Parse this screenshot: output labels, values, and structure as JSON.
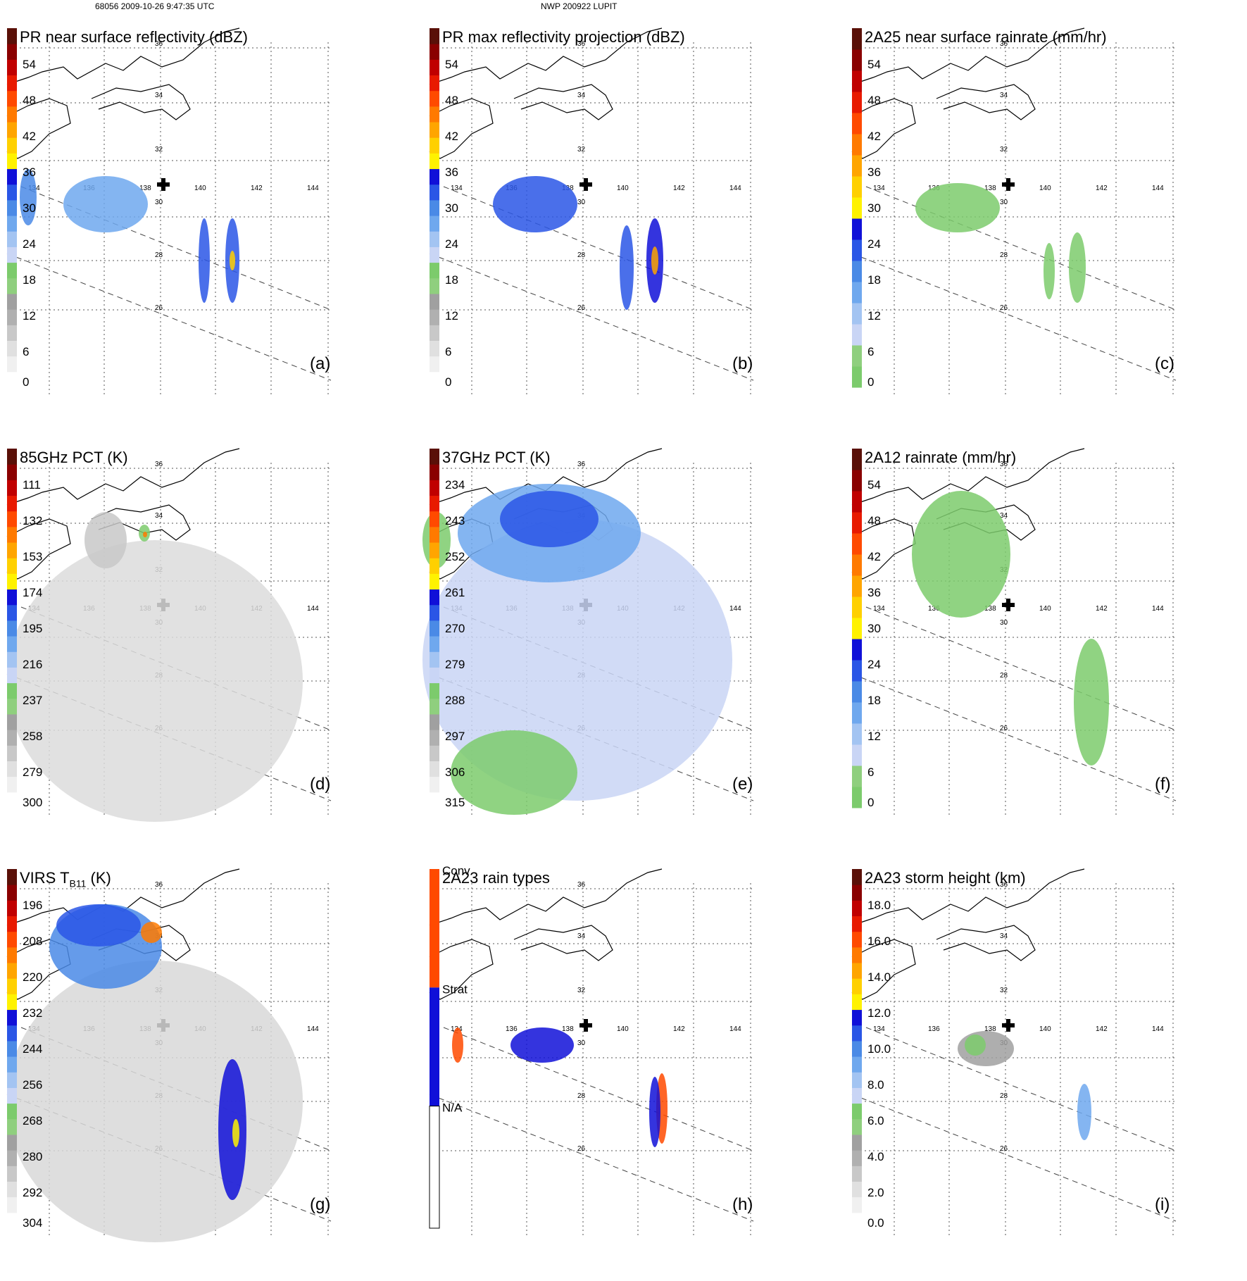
{
  "header": {
    "left": "68056 2009-10-26 9:47:35 UTC",
    "center": "NWP 200922 LUPIT"
  },
  "map": {
    "lon_labels": [
      "134",
      "136",
      "138",
      "140",
      "142",
      "144"
    ],
    "lat_labels": [
      "36",
      "34",
      "32",
      "30",
      "28",
      "26"
    ]
  },
  "chart_data": [
    {
      "id": "a",
      "type": "heatmap",
      "title": "PR near surface reflectivity (dBZ)",
      "label": "(a)",
      "colorbar_ticks": [
        "0",
        "6",
        "12",
        "18",
        "24",
        "30",
        "36",
        "42",
        "48",
        "54"
      ]
    },
    {
      "id": "b",
      "type": "heatmap",
      "title": "PR max reflectivity projection (dBZ)",
      "label": "(b)",
      "colorbar_ticks": [
        "0",
        "6",
        "12",
        "18",
        "24",
        "30",
        "36",
        "42",
        "48",
        "54"
      ]
    },
    {
      "id": "c",
      "type": "heatmap",
      "title": "2A25 near surface rainrate (mm/hr)",
      "label": "(c)",
      "colorbar_ticks": [
        "0",
        "6",
        "12",
        "18",
        "24",
        "30",
        "36",
        "42",
        "48",
        "54"
      ]
    },
    {
      "id": "d",
      "type": "heatmap",
      "title": "85GHz PCT (K)",
      "label": "(d)",
      "colorbar_ticks": [
        "300",
        "279",
        "258",
        "237",
        "216",
        "195",
        "174",
        "153",
        "132",
        "111"
      ]
    },
    {
      "id": "e",
      "type": "heatmap",
      "title": "37GHz PCT (K)",
      "label": "(e)",
      "colorbar_ticks": [
        "315",
        "306",
        "297",
        "288",
        "279",
        "270",
        "261",
        "252",
        "243",
        "234"
      ]
    },
    {
      "id": "f",
      "type": "heatmap",
      "title": "2A12 rainrate (mm/hr)",
      "label": "(f)",
      "colorbar_ticks": [
        "0",
        "6",
        "12",
        "18",
        "24",
        "30",
        "36",
        "42",
        "48",
        "54"
      ]
    },
    {
      "id": "g",
      "type": "heatmap",
      "title": "VIRS T",
      "title_sub": "B11",
      "title_suffix": " (K)",
      "label": "(g)",
      "colorbar_ticks": [
        "304",
        "292",
        "280",
        "268",
        "256",
        "244",
        "232",
        "220",
        "208",
        "196"
      ]
    },
    {
      "id": "h",
      "type": "heatmap",
      "title": "2A23 rain types",
      "label": "(h)",
      "colorbar_ticks": [
        "N/A",
        "Strat",
        "Conv"
      ]
    },
    {
      "id": "i",
      "type": "heatmap",
      "title": "2A23 storm height (km)",
      "label": "(i)",
      "colorbar_ticks": [
        "0.0",
        "2.0",
        "4.0",
        "6.0",
        "8.0",
        "10.0",
        "12.0",
        "14.0",
        "16.0",
        "18.0"
      ]
    }
  ]
}
